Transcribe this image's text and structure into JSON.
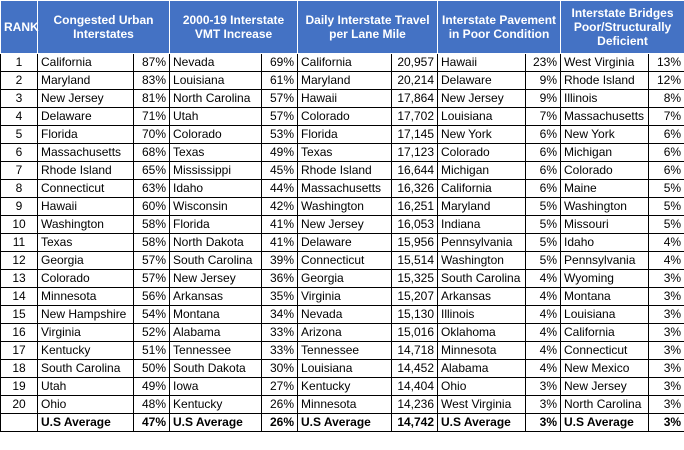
{
  "headers": {
    "rank": "RANK",
    "congested": "Congested Urban Interstates",
    "vmt": "2000-19 Interstate VMT Increase",
    "travel": "Daily Interstate Travel per Lane Mile",
    "pavement": "Interstate Pavement in Poor Condition",
    "bridges": "Interstate Bridges Poor/Structurally Deficient"
  },
  "rows": [
    {
      "rank": "1",
      "c1s": "California",
      "c1v": "87%",
      "c2s": "Nevada",
      "c2v": "69%",
      "c3s": "California",
      "c3v": "20,957",
      "c4s": "Hawaii",
      "c4v": "23%",
      "c5s": "West Virginia",
      "c5v": "13%"
    },
    {
      "rank": "2",
      "c1s": "Maryland",
      "c1v": "83%",
      "c2s": "Louisiana",
      "c2v": "61%",
      "c3s": "Maryland",
      "c3v": "20,214",
      "c4s": "Delaware",
      "c4v": "9%",
      "c5s": "Rhode Island",
      "c5v": "12%"
    },
    {
      "rank": "3",
      "c1s": "New Jersey",
      "c1v": "81%",
      "c2s": "North Carolina",
      "c2v": "57%",
      "c3s": "Hawaii",
      "c3v": "17,864",
      "c4s": "New Jersey",
      "c4v": "9%",
      "c5s": "Illinois",
      "c5v": "8%"
    },
    {
      "rank": "4",
      "c1s": "Delaware",
      "c1v": "71%",
      "c2s": "Utah",
      "c2v": "57%",
      "c3s": "Colorado",
      "c3v": "17,702",
      "c4s": "Louisiana",
      "c4v": "7%",
      "c5s": "Massachusetts",
      "c5v": "7%"
    },
    {
      "rank": "5",
      "c1s": "Florida",
      "c1v": "70%",
      "c2s": "Colorado",
      "c2v": "53%",
      "c3s": "Florida",
      "c3v": "17,145",
      "c4s": "New York",
      "c4v": "6%",
      "c5s": "New York",
      "c5v": "6%"
    },
    {
      "rank": "6",
      "c1s": "Massachusetts",
      "c1v": "68%",
      "c2s": "Texas",
      "c2v": "49%",
      "c3s": "Texas",
      "c3v": "17,123",
      "c4s": "Colorado",
      "c4v": "6%",
      "c5s": "Michigan",
      "c5v": "6%"
    },
    {
      "rank": "7",
      "c1s": "Rhode Island",
      "c1v": "65%",
      "c2s": "Mississippi",
      "c2v": "45%",
      "c3s": "Rhode Island",
      "c3v": "16,644",
      "c4s": "Michigan",
      "c4v": "6%",
      "c5s": "Colorado",
      "c5v": "6%"
    },
    {
      "rank": "8",
      "c1s": "Connecticut",
      "c1v": "63%",
      "c2s": "Idaho",
      "c2v": "44%",
      "c3s": "Massachusetts",
      "c3v": "16,326",
      "c4s": "California",
      "c4v": "6%",
      "c5s": "Maine",
      "c5v": "5%"
    },
    {
      "rank": "9",
      "c1s": "Hawaii",
      "c1v": "60%",
      "c2s": "Wisconsin",
      "c2v": "42%",
      "c3s": "Washington",
      "c3v": "16,251",
      "c4s": "Maryland",
      "c4v": "5%",
      "c5s": "Washington",
      "c5v": "5%"
    },
    {
      "rank": "10",
      "c1s": "Washington",
      "c1v": "58%",
      "c2s": "Florida",
      "c2v": "41%",
      "c3s": "New Jersey",
      "c3v": "16,053",
      "c4s": "Indiana",
      "c4v": "5%",
      "c5s": "Missouri",
      "c5v": "5%"
    },
    {
      "rank": "11",
      "c1s": "Texas",
      "c1v": "58%",
      "c2s": "North Dakota",
      "c2v": "41%",
      "c3s": "Delaware",
      "c3v": "15,956",
      "c4s": "Pennsylvania",
      "c4v": "5%",
      "c5s": "Idaho",
      "c5v": "4%"
    },
    {
      "rank": "12",
      "c1s": "Georgia",
      "c1v": "57%",
      "c2s": "South Carolina",
      "c2v": "39%",
      "c3s": "Connecticut",
      "c3v": "15,514",
      "c4s": "Washington",
      "c4v": "5%",
      "c5s": "Pennsylvania",
      "c5v": "4%"
    },
    {
      "rank": "13",
      "c1s": "Colorado",
      "c1v": "57%",
      "c2s": "New Jersey",
      "c2v": "36%",
      "c3s": "Georgia",
      "c3v": "15,325",
      "c4s": "South Carolina",
      "c4v": "4%",
      "c5s": "Wyoming",
      "c5v": "3%"
    },
    {
      "rank": "14",
      "c1s": "Minnesota",
      "c1v": "56%",
      "c2s": "Arkansas",
      "c2v": "35%",
      "c3s": "Virginia",
      "c3v": "15,207",
      "c4s": "Arkansas",
      "c4v": "4%",
      "c5s": "Montana",
      "c5v": "3%"
    },
    {
      "rank": "15",
      "c1s": "New Hampshire",
      "c1v": "54%",
      "c2s": "Montana",
      "c2v": "34%",
      "c3s": "Nevada",
      "c3v": "15,130",
      "c4s": "Illinois",
      "c4v": "4%",
      "c5s": "Louisiana",
      "c5v": "3%"
    },
    {
      "rank": "16",
      "c1s": "Virginia",
      "c1v": "52%",
      "c2s": "Alabama",
      "c2v": "33%",
      "c3s": "Arizona",
      "c3v": "15,016",
      "c4s": "Oklahoma",
      "c4v": "4%",
      "c5s": "California",
      "c5v": "3%"
    },
    {
      "rank": "17",
      "c1s": "Kentucky",
      "c1v": "51%",
      "c2s": "Tennessee",
      "c2v": "33%",
      "c3s": "Tennessee",
      "c3v": "14,718",
      "c4s": "Minnesota",
      "c4v": "4%",
      "c5s": "Connecticut",
      "c5v": "3%"
    },
    {
      "rank": "18",
      "c1s": "South Carolina",
      "c1v": "50%",
      "c2s": "South Dakota",
      "c2v": "30%",
      "c3s": "Louisiana",
      "c3v": "14,452",
      "c4s": "Alabama",
      "c4v": "4%",
      "c5s": "New Mexico",
      "c5v": "3%"
    },
    {
      "rank": "19",
      "c1s": "Utah",
      "c1v": "49%",
      "c2s": "Iowa",
      "c2v": "27%",
      "c3s": "Kentucky",
      "c3v": "14,404",
      "c4s": "Ohio",
      "c4v": "3%",
      "c5s": "New Jersey",
      "c5v": "3%"
    },
    {
      "rank": "20",
      "c1s": "Ohio",
      "c1v": "48%",
      "c2s": "Kentucky",
      "c2v": "26%",
      "c3s": "Minnesota",
      "c3v": "14,236",
      "c4s": "West Virginia",
      "c4v": "3%",
      "c5s": "North Carolina",
      "c5v": "3%"
    }
  ],
  "average": {
    "label": "U.S Average",
    "c1v": "47%",
    "c2v": "26%",
    "c3v": "14,742",
    "c4v": "3%",
    "c5v": "3%"
  },
  "colors": {
    "header_bg": "#4472c4",
    "header_text": "#ffffff",
    "grid": "#000000"
  }
}
